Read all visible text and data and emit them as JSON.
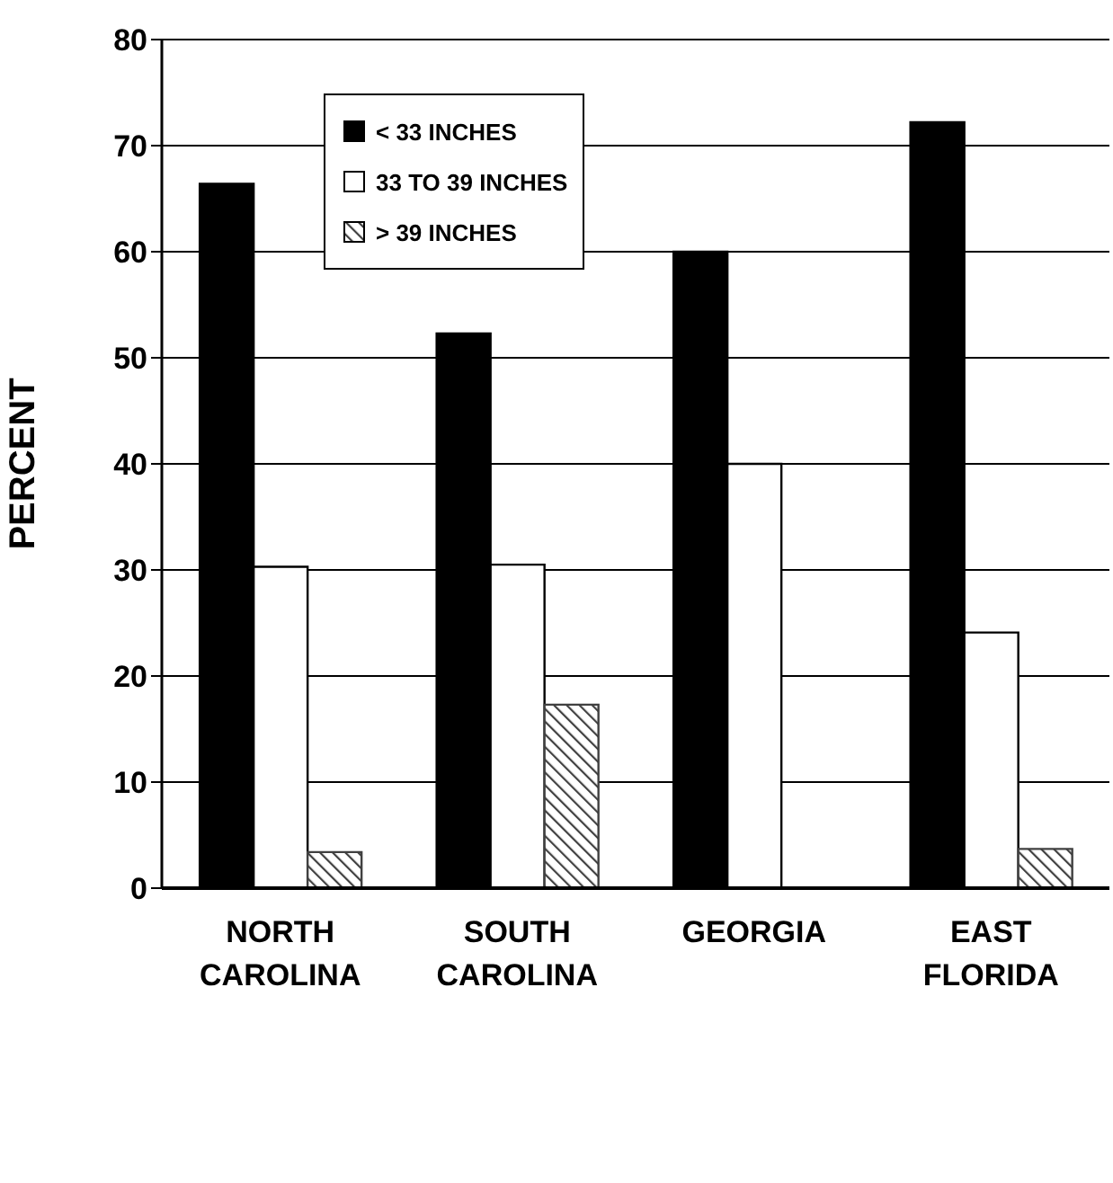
{
  "chart_data": {
    "type": "bar",
    "ylabel": "PERCENT",
    "categories": [
      "NORTH\nCAROLINA",
      "SOUTH\nCAROLINA",
      "GEORGIA",
      "EAST\nFLORIDA"
    ],
    "series": [
      {
        "name": "< 33 INCHES",
        "color": "#000000",
        "values": [
          66.4,
          52.3,
          60,
          72.2
        ]
      },
      {
        "name": "33 TO 39 INCHES",
        "color": "#ffffff",
        "values": [
          30.3,
          30.5,
          40,
          24.1
        ]
      },
      {
        "name": "> 39 INCHES",
        "color": "#404040",
        "values": [
          3.4,
          17.3,
          0,
          3.7
        ]
      }
    ],
    "ylim": [
      0,
      80
    ],
    "yticks": [
      0,
      10,
      20,
      30,
      40,
      50,
      60,
      70,
      80
    ],
    "grid": "y",
    "legend": "top left"
  }
}
